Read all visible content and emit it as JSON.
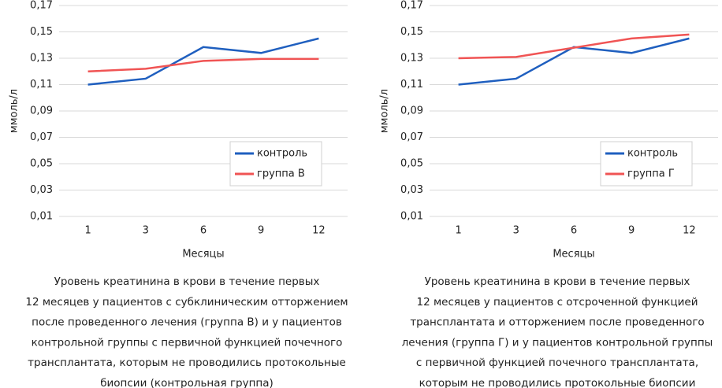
{
  "chart_data": [
    {
      "type": "line",
      "y_label": "ммоль/л",
      "x_label": "Месяцы",
      "categories": [
        "1",
        "3",
        "6",
        "9",
        "12"
      ],
      "series": [
        {
          "name": "контроль",
          "color": "#1f5fbf",
          "values": [
            0.11,
            0.1145,
            0.1385,
            0.134,
            0.145
          ]
        },
        {
          "name": "группа В",
          "color": "#f05454",
          "values": [
            0.12,
            0.122,
            0.128,
            0.1295,
            0.1295
          ]
        }
      ],
      "ylim": [
        0.01,
        0.17
      ],
      "yticks": [
        {
          "value": 0.01,
          "label": "0,01"
        },
        {
          "value": 0.03,
          "label": "0,03"
        },
        {
          "value": 0.05,
          "label": "0,05"
        },
        {
          "value": 0.07,
          "label": "0,07"
        },
        {
          "value": 0.09,
          "label": "0,09"
        },
        {
          "value": 0.11,
          "label": "0,11"
        },
        {
          "value": 0.13,
          "label": "0,13"
        },
        {
          "value": 0.15,
          "label": "0,15"
        },
        {
          "value": 0.17,
          "label": "0,17"
        }
      ],
      "grid": true,
      "legend": "lower right",
      "caption": [
        "Уровень креатинина в крови в течение первых",
        "12 месяцев у пациентов с субклиническим отторжением",
        "после проведенного лечения (группа В) и у пациентов",
        "контрольной группы с первичной функцией почечного",
        "трансплантата, которым не проводились протокольные",
        "биопсии (контрольная группа)"
      ]
    },
    {
      "type": "line",
      "y_label": "ммоль/л",
      "x_label": "Месяцы",
      "categories": [
        "1",
        "3",
        "6",
        "9",
        "12"
      ],
      "series": [
        {
          "name": "контроль",
          "color": "#1f5fbf",
          "values": [
            0.11,
            0.1145,
            0.1385,
            0.134,
            0.145
          ]
        },
        {
          "name": "группа Г",
          "color": "#f05454",
          "values": [
            0.13,
            0.131,
            0.138,
            0.145,
            0.148
          ]
        }
      ],
      "ylim": [
        0.01,
        0.17
      ],
      "yticks": [
        {
          "value": 0.01,
          "label": "0,01"
        },
        {
          "value": 0.03,
          "label": "0,03"
        },
        {
          "value": 0.05,
          "label": "0,05"
        },
        {
          "value": 0.07,
          "label": "0,07"
        },
        {
          "value": 0.09,
          "label": "0,09"
        },
        {
          "value": 0.11,
          "label": "0,11"
        },
        {
          "value": 0.13,
          "label": "0,13"
        },
        {
          "value": 0.15,
          "label": "0,15"
        },
        {
          "value": 0.17,
          "label": "0,17"
        }
      ],
      "grid": true,
      "legend": "lower right",
      "caption": [
        "Уровень креатинина в крови в течение первых",
        "12 месяцев у пациентов с отсроченной функцией",
        "трансплантата и отторжением после проведенного",
        "лечения (группа Г) и у пациентов контрольной группы",
        "с первичной функцией почечного трансплантата,",
        "которым не проводились протокольные биопсии"
      ]
    }
  ]
}
